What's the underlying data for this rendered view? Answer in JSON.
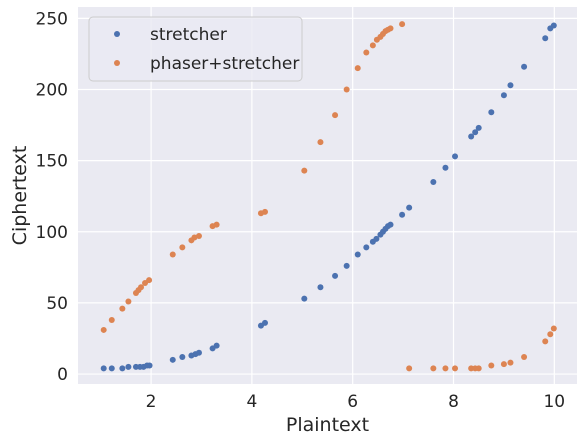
{
  "chart_data": {
    "type": "scatter",
    "xlabel": "Plaintext",
    "ylabel": "Ciphertext",
    "xlim": [
      0.55,
      10.45
    ],
    "ylim": [
      -7,
      258
    ],
    "xticks": [
      2,
      4,
      6,
      8,
      10
    ],
    "yticks": [
      0,
      50,
      100,
      150,
      200,
      250
    ],
    "grid": true,
    "legend_position": "top-left",
    "series": [
      {
        "name": "stretcher",
        "color": "#4c72b0",
        "points": [
          [
            1.06,
            4
          ],
          [
            1.22,
            4
          ],
          [
            1.43,
            4
          ],
          [
            1.55,
            5
          ],
          [
            1.7,
            5
          ],
          [
            1.78,
            5
          ],
          [
            1.85,
            5
          ],
          [
            1.92,
            6
          ],
          [
            1.97,
            6
          ],
          [
            2.43,
            10
          ],
          [
            2.62,
            12
          ],
          [
            2.8,
            13
          ],
          [
            2.88,
            14
          ],
          [
            2.95,
            15
          ],
          [
            3.22,
            18
          ],
          [
            3.3,
            20
          ],
          [
            4.18,
            34
          ],
          [
            4.26,
            36
          ],
          [
            5.04,
            53
          ],
          [
            5.36,
            61
          ],
          [
            5.65,
            69
          ],
          [
            5.88,
            76
          ],
          [
            6.1,
            84
          ],
          [
            6.27,
            89
          ],
          [
            6.4,
            93
          ],
          [
            6.47,
            95
          ],
          [
            6.55,
            98
          ],
          [
            6.6,
            100
          ],
          [
            6.65,
            102
          ],
          [
            6.7,
            104
          ],
          [
            6.75,
            105
          ],
          [
            6.98,
            112
          ],
          [
            7.12,
            117
          ],
          [
            7.6,
            135
          ],
          [
            7.84,
            145
          ],
          [
            8.03,
            153
          ],
          [
            8.35,
            167
          ],
          [
            8.43,
            170
          ],
          [
            8.5,
            173
          ],
          [
            8.75,
            184
          ],
          [
            9.0,
            196
          ],
          [
            9.13,
            203
          ],
          [
            9.4,
            216
          ],
          [
            9.82,
            236
          ],
          [
            9.92,
            243
          ],
          [
            9.99,
            245
          ]
        ]
      },
      {
        "name": "phaser+stretcher",
        "color": "#dd8452",
        "points": [
          [
            1.06,
            31
          ],
          [
            1.22,
            38
          ],
          [
            1.43,
            46
          ],
          [
            1.55,
            51
          ],
          [
            1.7,
            57
          ],
          [
            1.75,
            59
          ],
          [
            1.8,
            61
          ],
          [
            1.88,
            64
          ],
          [
            1.96,
            66
          ],
          [
            2.43,
            84
          ],
          [
            2.62,
            89
          ],
          [
            2.8,
            94
          ],
          [
            2.86,
            96
          ],
          [
            2.95,
            97
          ],
          [
            3.22,
            104
          ],
          [
            3.3,
            105
          ],
          [
            4.18,
            113
          ],
          [
            4.26,
            114
          ],
          [
            5.04,
            143
          ],
          [
            5.36,
            163
          ],
          [
            5.65,
            182
          ],
          [
            5.88,
            200
          ],
          [
            6.1,
            215
          ],
          [
            6.27,
            226
          ],
          [
            6.4,
            231
          ],
          [
            6.48,
            235
          ],
          [
            6.55,
            237
          ],
          [
            6.6,
            239
          ],
          [
            6.65,
            241
          ],
          [
            6.7,
            242
          ],
          [
            6.75,
            243
          ],
          [
            6.98,
            246
          ],
          [
            7.12,
            4
          ],
          [
            7.6,
            4
          ],
          [
            7.84,
            4
          ],
          [
            8.03,
            4
          ],
          [
            8.35,
            4
          ],
          [
            8.43,
            4
          ],
          [
            8.5,
            4
          ],
          [
            8.75,
            6
          ],
          [
            9.0,
            7
          ],
          [
            9.13,
            8
          ],
          [
            9.4,
            12
          ],
          [
            9.82,
            23
          ],
          [
            9.92,
            28
          ],
          [
            9.99,
            32
          ]
        ]
      }
    ]
  }
}
